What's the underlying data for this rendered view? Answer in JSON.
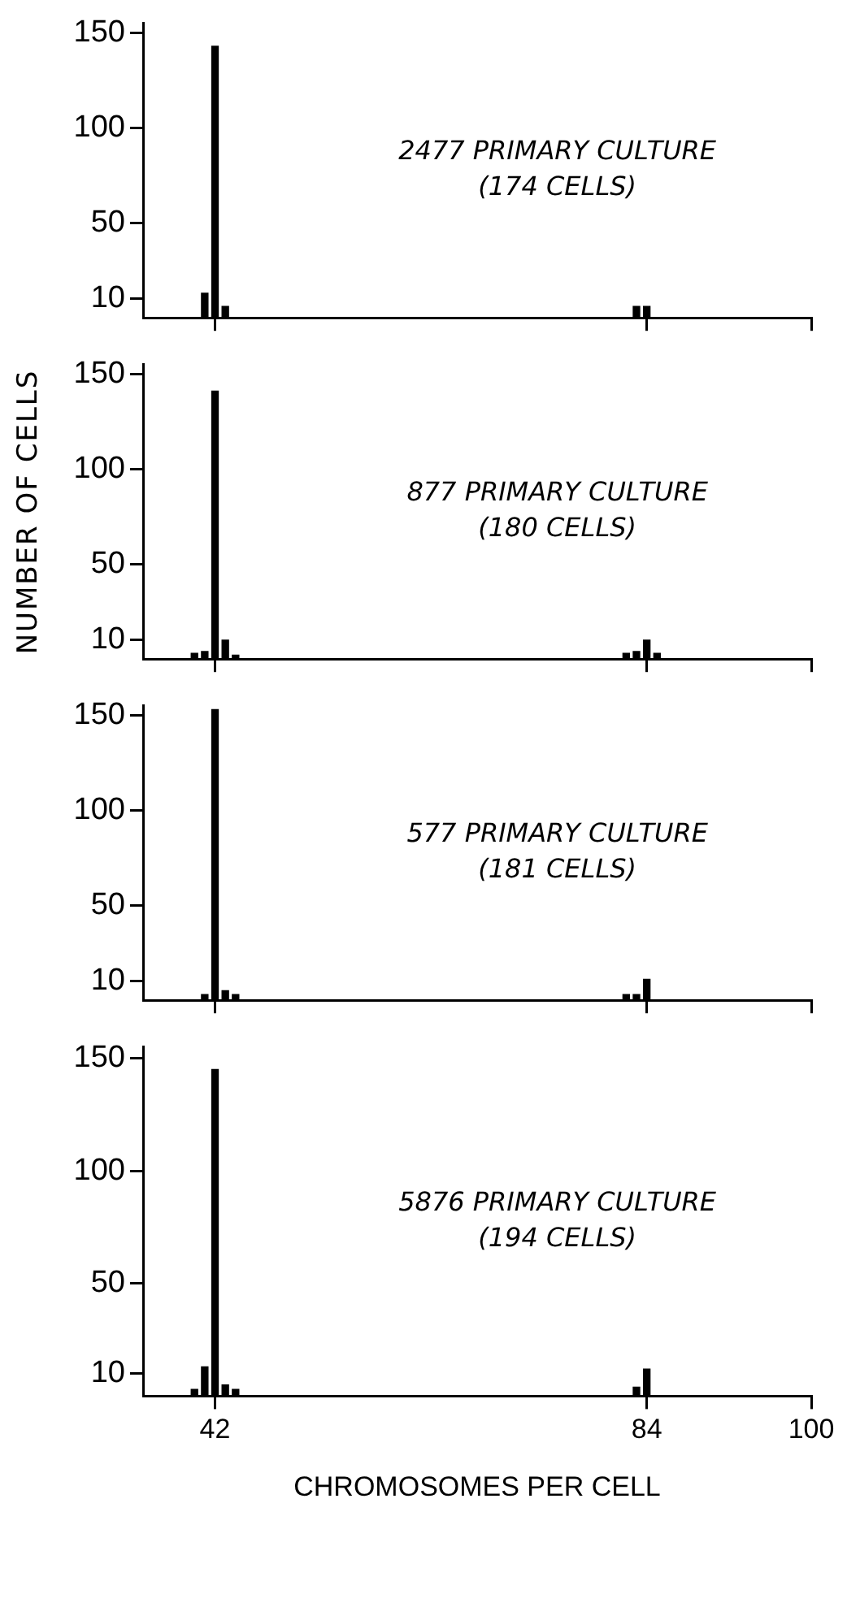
{
  "chart_data": [
    {
      "type": "bar",
      "annotations": [
        "2477 PRIMARY CULTURE",
        "(174 CELLS)"
      ],
      "x": [
        41,
        42,
        43,
        83,
        84
      ],
      "values": [
        13,
        143,
        6,
        6,
        6
      ],
      "color": "#000000",
      "xlim": [
        35,
        100
      ],
      "xticks": [
        42,
        84,
        100
      ],
      "ylim": [
        0,
        155
      ],
      "yticks": [
        10,
        50,
        100,
        150
      ],
      "tick_labels": "y",
      "grid": false,
      "legend": false
    },
    {
      "type": "bar",
      "ylabel": "NUMBER OF CELLS",
      "annotations": [
        "877 PRIMARY CULTURE",
        "(180 CELLS)"
      ],
      "x": [
        40,
        41,
        42,
        43,
        44,
        82,
        83,
        84,
        85
      ],
      "values": [
        3,
        4,
        141,
        10,
        2,
        3,
        4,
        10,
        3
      ],
      "color": "#000000",
      "xlim": [
        35,
        100
      ],
      "xticks": [
        42,
        84,
        100
      ],
      "ylim": [
        0,
        155
      ],
      "yticks": [
        10,
        50,
        100,
        150
      ],
      "tick_labels": "y",
      "grid": false,
      "legend": false
    },
    {
      "type": "bar",
      "annotations": [
        "577 PRIMARY CULTURE",
        "(181 CELLS)"
      ],
      "x": [
        41,
        42,
        43,
        44,
        82,
        83,
        84
      ],
      "values": [
        3,
        153,
        5,
        3,
        3,
        3,
        11
      ],
      "color": "#000000",
      "xlim": [
        35,
        100
      ],
      "xticks": [
        42,
        84,
        100
      ],
      "ylim": [
        0,
        155
      ],
      "yticks": [
        10,
        50,
        100,
        150
      ],
      "tick_labels": "y",
      "grid": false,
      "legend": false
    },
    {
      "type": "bar",
      "xlabel": "CHROMOSOMES PER CELL",
      "annotations": [
        "5876 PRIMARY CULTURE",
        "(194 CELLS)"
      ],
      "x": [
        40,
        41,
        42,
        43,
        44,
        83,
        84
      ],
      "values": [
        3,
        13,
        145,
        5,
        3,
        4,
        12
      ],
      "color": "#000000",
      "xlim": [
        35,
        100
      ],
      "xticks": [
        42,
        84,
        100
      ],
      "ylim": [
        0,
        155
      ],
      "yticks": [
        10,
        50,
        100,
        150
      ],
      "grid": false,
      "legend": false
    }
  ]
}
